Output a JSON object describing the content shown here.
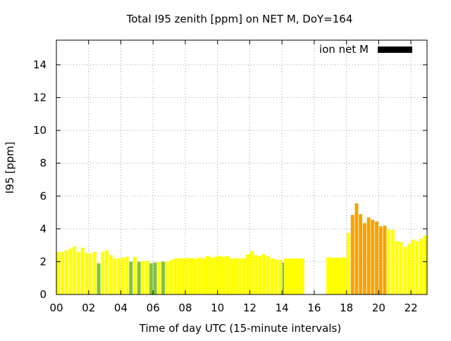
{
  "chart_data": {
    "type": "bar",
    "title": "Total I95 zenith [ppm] on NET M, DoY=164",
    "xlabel": "Time of day UTC (15-minute intervals)",
    "ylabel": "I95 [ppm]",
    "xlim": [
      0,
      23
    ],
    "ylim": [
      0,
      15.5
    ],
    "xticks": [
      0,
      2,
      4,
      6,
      8,
      10,
      12,
      14,
      16,
      18,
      20,
      22
    ],
    "xtick_labels": [
      "00",
      "02",
      "04",
      "06",
      "08",
      "10",
      "12",
      "14",
      "16",
      "18",
      "20",
      "22"
    ],
    "yticks": [
      0,
      2,
      4,
      6,
      8,
      10,
      12,
      14
    ],
    "ytick_labels": [
      "0",
      "2",
      "4",
      "6",
      "8",
      "10",
      "12",
      "14"
    ],
    "grid": true,
    "legend": {
      "position": "top-right",
      "label": "ion net M",
      "color": "#000000"
    },
    "colors": {
      "low": "#ffff00",
      "mid": "#7ec242",
      "high": "#f5a300"
    },
    "bars": [
      {
        "x": 0.125,
        "y": 2.6,
        "level": "low"
      },
      {
        "x": 0.375,
        "y": 2.6,
        "level": "low"
      },
      {
        "x": 0.625,
        "y": 2.7,
        "level": "low"
      },
      {
        "x": 0.875,
        "y": 2.8,
        "level": "low"
      },
      {
        "x": 1.125,
        "y": 2.95,
        "level": "low"
      },
      {
        "x": 1.375,
        "y": 2.6,
        "level": "low"
      },
      {
        "x": 1.625,
        "y": 2.85,
        "level": "low"
      },
      {
        "x": 1.875,
        "y": 2.55,
        "level": "low"
      },
      {
        "x": 2.125,
        "y": 2.5,
        "level": "low"
      },
      {
        "x": 2.375,
        "y": 2.6,
        "level": "low"
      },
      {
        "x": 2.625,
        "y": 1.9,
        "level": "mid"
      },
      {
        "x": 2.875,
        "y": 2.6,
        "level": "low"
      },
      {
        "x": 3.125,
        "y": 2.7,
        "level": "low"
      },
      {
        "x": 3.375,
        "y": 2.4,
        "level": "low"
      },
      {
        "x": 3.625,
        "y": 2.2,
        "level": "low"
      },
      {
        "x": 3.875,
        "y": 2.2,
        "level": "low"
      },
      {
        "x": 4.125,
        "y": 2.25,
        "level": "low"
      },
      {
        "x": 4.375,
        "y": 2.3,
        "level": "low"
      },
      {
        "x": 4.625,
        "y": 2.0,
        "level": "mid"
      },
      {
        "x": 4.875,
        "y": 2.3,
        "level": "low"
      },
      {
        "x": 5.125,
        "y": 2.0,
        "level": "mid"
      },
      {
        "x": 5.375,
        "y": 2.05,
        "level": "low"
      },
      {
        "x": 5.625,
        "y": 2.05,
        "level": "low"
      },
      {
        "x": 5.875,
        "y": 1.9,
        "level": "mid"
      },
      {
        "x": 6.125,
        "y": 1.95,
        "level": "mid"
      },
      {
        "x": 6.375,
        "y": 2.0,
        "level": "low"
      },
      {
        "x": 6.625,
        "y": 2.0,
        "level": "mid"
      },
      {
        "x": 6.875,
        "y": 2.0,
        "level": "low"
      },
      {
        "x": 7.125,
        "y": 2.1,
        "level": "low"
      },
      {
        "x": 7.375,
        "y": 2.2,
        "level": "low"
      },
      {
        "x": 7.625,
        "y": 2.2,
        "level": "low"
      },
      {
        "x": 7.875,
        "y": 2.2,
        "level": "low"
      },
      {
        "x": 8.125,
        "y": 2.25,
        "level": "low"
      },
      {
        "x": 8.375,
        "y": 2.2,
        "level": "low"
      },
      {
        "x": 8.625,
        "y": 2.2,
        "level": "low"
      },
      {
        "x": 8.875,
        "y": 2.25,
        "level": "low"
      },
      {
        "x": 9.125,
        "y": 2.2,
        "level": "low"
      },
      {
        "x": 9.375,
        "y": 2.35,
        "level": "low"
      },
      {
        "x": 9.625,
        "y": 2.25,
        "level": "low"
      },
      {
        "x": 9.875,
        "y": 2.3,
        "level": "low"
      },
      {
        "x": 10.125,
        "y": 2.35,
        "level": "low"
      },
      {
        "x": 10.375,
        "y": 2.3,
        "level": "low"
      },
      {
        "x": 10.625,
        "y": 2.35,
        "level": "low"
      },
      {
        "x": 10.875,
        "y": 2.2,
        "level": "low"
      },
      {
        "x": 11.125,
        "y": 2.2,
        "level": "low"
      },
      {
        "x": 11.375,
        "y": 2.2,
        "level": "low"
      },
      {
        "x": 11.625,
        "y": 2.2,
        "level": "low"
      },
      {
        "x": 11.875,
        "y": 2.45,
        "level": "low"
      },
      {
        "x": 12.125,
        "y": 2.65,
        "level": "low"
      },
      {
        "x": 12.375,
        "y": 2.4,
        "level": "low"
      },
      {
        "x": 12.625,
        "y": 2.35,
        "level": "low"
      },
      {
        "x": 12.875,
        "y": 2.45,
        "level": "low"
      },
      {
        "x": 13.125,
        "y": 2.35,
        "level": "low"
      },
      {
        "x": 13.375,
        "y": 2.2,
        "level": "low"
      },
      {
        "x": 13.625,
        "y": 2.15,
        "level": "low"
      },
      {
        "x": 13.875,
        "y": 2.1,
        "level": "low"
      },
      {
        "x": 14.125,
        "y": 1.95,
        "level": "mid"
      },
      {
        "x": 14.75,
        "y": 2.2,
        "level": "low",
        "span": 1.25
      },
      {
        "x": 17.375,
        "y": 2.25,
        "level": "low",
        "span": 1.25
      },
      {
        "x": 18.125,
        "y": 3.75,
        "level": "low"
      },
      {
        "x": 18.375,
        "y": 4.85,
        "level": "high"
      },
      {
        "x": 18.625,
        "y": 5.55,
        "level": "high"
      },
      {
        "x": 18.875,
        "y": 4.9,
        "level": "high"
      },
      {
        "x": 19.125,
        "y": 4.35,
        "level": "high"
      },
      {
        "x": 19.375,
        "y": 4.7,
        "level": "high"
      },
      {
        "x": 19.625,
        "y": 4.55,
        "level": "high"
      },
      {
        "x": 19.875,
        "y": 4.45,
        "level": "high"
      },
      {
        "x": 20.125,
        "y": 4.15,
        "level": "high"
      },
      {
        "x": 20.375,
        "y": 4.2,
        "level": "high"
      },
      {
        "x": 20.625,
        "y": 3.95,
        "level": "low"
      },
      {
        "x": 20.875,
        "y": 3.95,
        "level": "low"
      },
      {
        "x": 21.125,
        "y": 3.25,
        "level": "low"
      },
      {
        "x": 21.375,
        "y": 3.2,
        "level": "low"
      },
      {
        "x": 21.625,
        "y": 2.9,
        "level": "low"
      },
      {
        "x": 21.875,
        "y": 3.1,
        "level": "low"
      },
      {
        "x": 22.125,
        "y": 3.35,
        "level": "low"
      },
      {
        "x": 22.375,
        "y": 3.25,
        "level": "low"
      },
      {
        "x": 22.625,
        "y": 3.4,
        "level": "low"
      },
      {
        "x": 22.875,
        "y": 3.6,
        "level": "low"
      }
    ]
  }
}
